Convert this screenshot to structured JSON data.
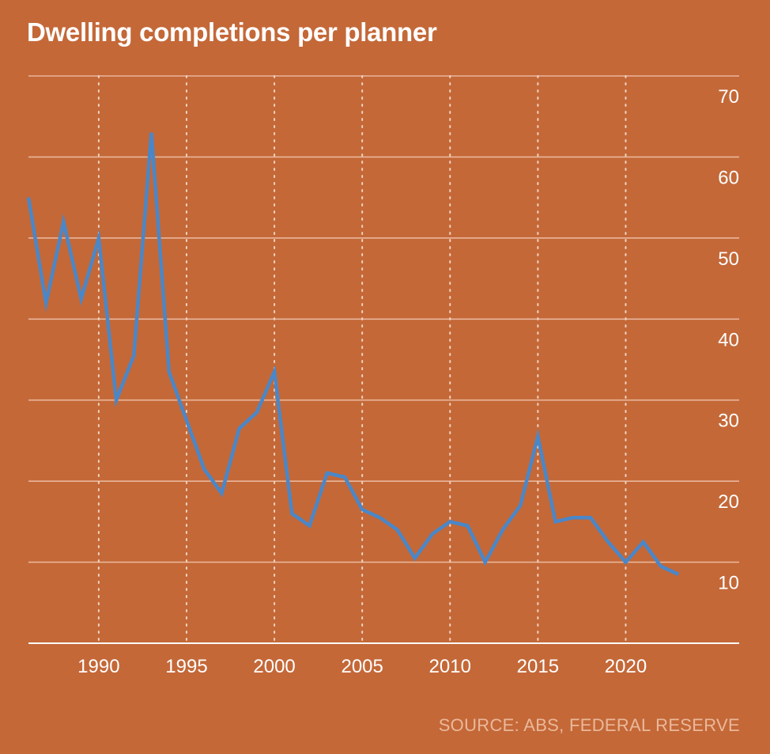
{
  "chart_data": {
    "type": "line",
    "title": "Dwelling completions per planner",
    "source": "SOURCE: ABS, FEDERAL RESERVE",
    "xlabel": "",
    "ylabel": "",
    "xlim": [
      1986,
      2024.8
    ],
    "ylim": [
      0,
      70
    ],
    "x_ticks": [
      1990,
      1995,
      2000,
      2005,
      2010,
      2015,
      2020
    ],
    "y_ticks": [
      10,
      20,
      30,
      40,
      50,
      60,
      70
    ],
    "grid": true,
    "series": [
      {
        "name": "Dwelling completions per planner",
        "color": "#4a87c8",
        "x": [
          1986,
          1987,
          1988,
          1989,
          1990,
          1991,
          1992,
          1993,
          1994,
          1995,
          1996,
          1997,
          1998,
          1999,
          2000,
          2001,
          2002,
          2003,
          2004,
          2005,
          2006,
          2007,
          2008,
          2009,
          2010,
          2011,
          2012,
          2013,
          2014,
          2015,
          2016,
          2017,
          2018,
          2019,
          2020,
          2021,
          2022,
          2023
        ],
        "values": [
          55,
          42,
          52,
          42.5,
          50,
          30,
          35.5,
          63,
          33.5,
          27.5,
          21.5,
          18.5,
          26.5,
          28.5,
          33.5,
          16,
          14.5,
          21,
          20.5,
          16.5,
          15.5,
          14,
          10.5,
          13.5,
          15,
          14.5,
          10,
          14,
          17,
          25.5,
          15,
          15.5,
          15.5,
          12.5,
          10,
          12.5,
          9.5,
          8.5
        ]
      }
    ]
  }
}
